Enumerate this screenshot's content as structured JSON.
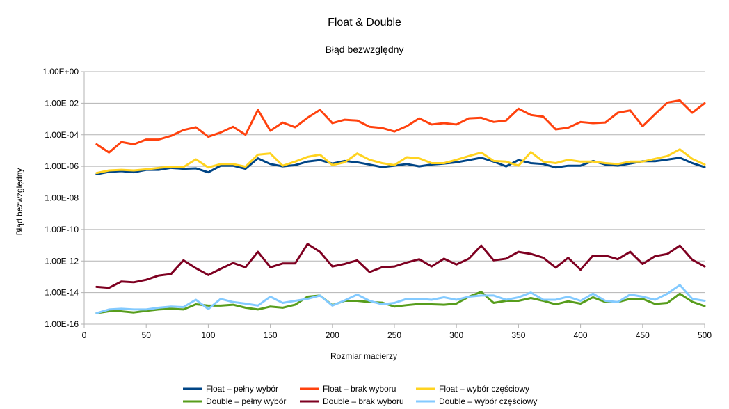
{
  "chart_data": {
    "type": "line",
    "title": "Float & Double",
    "subtitle": "Błąd bezwzględny",
    "xlabel": "Rozmiar macierzy",
    "ylabel": "Błąd bezwzględny",
    "yscale": "log",
    "xlim": [
      0,
      500
    ],
    "ylim": [
      1e-16,
      1
    ],
    "grid": "horizontal",
    "legend_position": "bottom",
    "xticks": [
      "0",
      "50",
      "100",
      "150",
      "200",
      "250",
      "300",
      "350",
      "400",
      "450",
      "500"
    ],
    "yticks": [
      "1.00E-16",
      "1.00E-14",
      "1.00E-12",
      "1.00E-10",
      "1.00E-08",
      "1.00E-06",
      "1.00E-04",
      "1.00E-02",
      "1.00E+00"
    ],
    "x": [
      10,
      20,
      30,
      40,
      50,
      60,
      70,
      80,
      90,
      100,
      110,
      120,
      130,
      140,
      150,
      160,
      170,
      180,
      190,
      200,
      210,
      220,
      230,
      240,
      250,
      260,
      270,
      280,
      290,
      300,
      310,
      320,
      330,
      340,
      350,
      360,
      370,
      380,
      390,
      400,
      410,
      420,
      430,
      440,
      450,
      460,
      470,
      480,
      490,
      500
    ],
    "series": [
      {
        "name": "Float – pełny wybór",
        "color": "#004586",
        "values": [
          3.2e-07,
          4.5e-07,
          5e-07,
          4.2e-07,
          6e-07,
          6e-07,
          8e-07,
          7e-07,
          7.5e-07,
          4.2e-07,
          1.1e-06,
          1.1e-06,
          7e-07,
          3.2e-06,
          1.4e-06,
          1e-06,
          1.2e-06,
          2e-06,
          2.5e-06,
          1.5e-06,
          2.2e-06,
          1.8e-06,
          1.3e-06,
          9e-07,
          1.1e-06,
          1.4e-06,
          1e-06,
          1.3e-06,
          1.5e-06,
          1.8e-06,
          2.5e-06,
          3.5e-06,
          2e-06,
          1e-06,
          2.5e-06,
          1.6e-06,
          1.4e-06,
          8.5e-07,
          1.1e-06,
          1.1e-06,
          2.2e-06,
          1.3e-06,
          1.1e-06,
          1.5e-06,
          2.1e-06,
          2.1e-06,
          2.7e-06,
          3.5e-06,
          1.6e-06,
          9e-07
        ]
      },
      {
        "name": "Float – brak wyboru",
        "color": "#ff420e",
        "values": [
          2.5e-05,
          7.5e-06,
          3.5e-05,
          2.5e-05,
          5e-05,
          5e-05,
          8.5e-05,
          0.0002,
          0.0003,
          7.5e-05,
          0.00014,
          0.00032,
          0.0001,
          0.0038,
          0.00018,
          0.0006,
          0.0003,
          0.0012,
          0.0038,
          0.00055,
          0.0009,
          0.0008,
          0.00032,
          0.00027,
          0.00016,
          0.00035,
          0.0011,
          0.00045,
          0.00055,
          0.00045,
          0.0011,
          0.0012,
          0.00065,
          0.0008,
          0.0045,
          0.0018,
          0.0014,
          0.00022,
          0.00028,
          0.00065,
          0.00055,
          0.0006,
          0.0025,
          0.0035,
          0.00035,
          0.002,
          0.011,
          0.015,
          0.0025,
          0.01
        ]
      },
      {
        "name": "Float – wybór częściowy",
        "color": "#ffd320",
        "values": [
          3.8e-07,
          5.5e-07,
          6e-07,
          5.5e-07,
          6.5e-07,
          8e-07,
          9.5e-07,
          9e-07,
          2.8e-06,
          8.5e-07,
          1.4e-06,
          1.4e-06,
          9.5e-07,
          5.5e-06,
          6.5e-06,
          1.1e-06,
          2e-06,
          4e-06,
          5.5e-06,
          1.2e-06,
          1.8e-06,
          6.5e-06,
          2.6e-06,
          1.6e-06,
          1.2e-06,
          3.8e-06,
          3.2e-06,
          1.6e-06,
          1.6e-06,
          2.6e-06,
          4.5e-06,
          7.5e-06,
          2.2e-06,
          2e-06,
          1.1e-06,
          8e-06,
          2e-06,
          1.6e-06,
          2.6e-06,
          2e-06,
          2e-06,
          1.6e-06,
          1.4e-06,
          2e-06,
          2e-06,
          3e-06,
          4.5e-06,
          1.2e-05,
          3e-06,
          1.3e-06
        ]
      },
      {
        "name": "Double – pełny wybór",
        "color": "#579d1c",
        "values": [
          5e-16,
          6.5e-16,
          6.5e-16,
          5.5e-16,
          7e-16,
          8.5e-16,
          9.5e-16,
          8.5e-16,
          1.8e-15,
          1.5e-15,
          1.5e-15,
          1.7e-15,
          1.1e-15,
          8.5e-16,
          1.3e-15,
          1.1e-15,
          1.7e-15,
          5.5e-15,
          6.5e-15,
          1.6e-15,
          3e-15,
          3e-15,
          2.5e-15,
          2.3e-15,
          1.3e-15,
          1.6e-15,
          1.9e-15,
          1.8e-15,
          1.7e-15,
          2e-15,
          5.5e-15,
          1.1e-14,
          2.2e-15,
          3e-15,
          3e-15,
          4.5e-15,
          3e-15,
          1.8e-15,
          2.8e-15,
          2e-15,
          5e-15,
          2.5e-15,
          2.5e-15,
          4e-15,
          4e-15,
          1.9e-15,
          2.2e-15,
          8.5e-15,
          2.6e-15,
          1.4e-15
        ]
      },
      {
        "name": "Double – brak wyboru",
        "color": "#7e0021",
        "values": [
          2.3e-14,
          2e-14,
          5e-14,
          4.5e-14,
          6.5e-14,
          1.2e-13,
          1.5e-13,
          1.1e-12,
          3.5e-13,
          1.3e-13,
          3.2e-13,
          7.5e-13,
          4e-13,
          3.8e-12,
          4e-13,
          7e-13,
          7e-13,
          1.2e-11,
          3.8e-12,
          4.5e-13,
          6.5e-13,
          1.1e-12,
          2e-13,
          4e-13,
          4.5e-13,
          8e-13,
          1.3e-12,
          4.5e-13,
          1.4e-12,
          6e-13,
          1.4e-12,
          9.5e-12,
          1.1e-12,
          1.4e-12,
          3.8e-12,
          2.8e-12,
          1.6e-12,
          3.8e-13,
          1.6e-12,
          2.8e-13,
          2.2e-12,
          2.2e-12,
          1.3e-12,
          3.8e-12,
          6.5e-13,
          2e-12,
          2.8e-12,
          9.5e-12,
          1.2e-12,
          4.5e-13
        ]
      },
      {
        "name": "Double – wybór częściowy",
        "color": "#83caff",
        "values": [
          5e-16,
          8.5e-16,
          9.5e-16,
          8.5e-16,
          8.5e-16,
          1.1e-15,
          1.3e-15,
          1.2e-15,
          3.5e-15,
          9e-16,
          4e-15,
          2.5e-15,
          2e-15,
          1.5e-15,
          5.5e-15,
          2.2e-15,
          3e-15,
          4e-15,
          6.5e-15,
          1.5e-15,
          3.2e-15,
          7.5e-15,
          3e-15,
          1.8e-15,
          2.2e-15,
          4e-15,
          4e-15,
          3.5e-15,
          5e-15,
          3.5e-15,
          5.5e-15,
          6.5e-15,
          6.5e-15,
          3.5e-15,
          5e-15,
          1e-14,
          3.5e-15,
          3.5e-15,
          5.5e-15,
          3e-15,
          8.5e-15,
          3e-15,
          2.5e-15,
          7.5e-15,
          5.5e-15,
          3.5e-15,
          8.5e-15,
          3e-14,
          4e-15,
          3e-15
        ]
      }
    ]
  }
}
